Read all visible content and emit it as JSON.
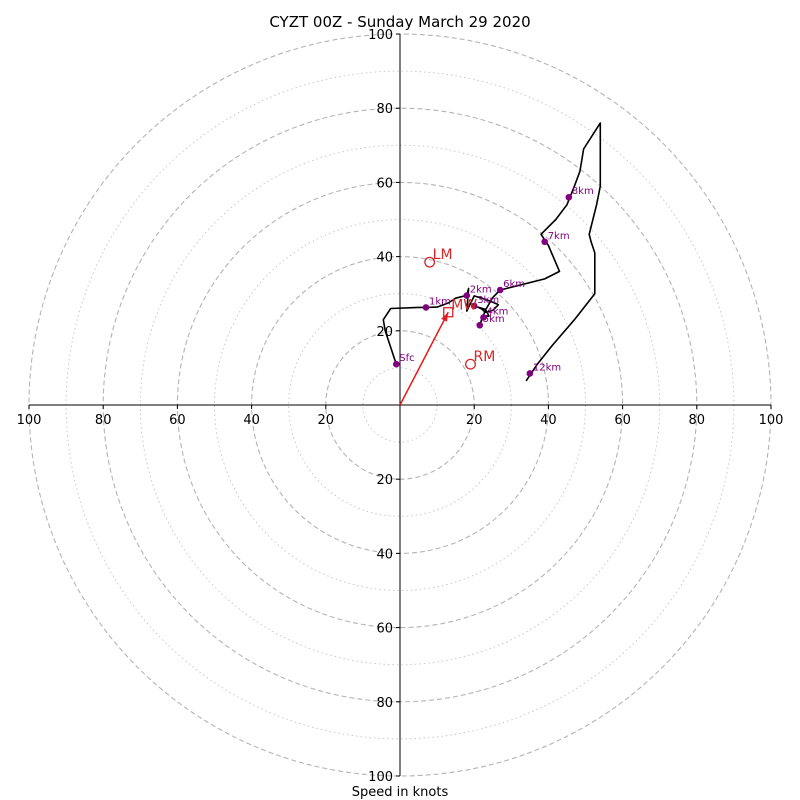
{
  "chart_data": {
    "type": "hodograph",
    "title": "CYZT 00Z - Sunday March 29 2020",
    "xlabel": "Speed in knots",
    "ylabel": "",
    "xlim": [
      -100,
      100
    ],
    "ylim": [
      -100,
      100
    ],
    "grid": {
      "major_rings": [
        20,
        40,
        60,
        80,
        100
      ],
      "minor_rings": [
        10,
        30,
        50,
        70,
        90
      ],
      "major_style": "dashed",
      "minor_style": "dotted"
    },
    "ticks": {
      "x_positions": [
        -100,
        -80,
        -60,
        -40,
        -20,
        20,
        40,
        60,
        80,
        100
      ],
      "x_labels": [
        "100",
        "80",
        "60",
        "40",
        "20",
        "20",
        "40",
        "60",
        "80",
        "100"
      ],
      "y_positions": [
        100,
        80,
        60,
        40,
        20,
        -20,
        -40,
        -60,
        -80,
        -100
      ],
      "y_labels": [
        "100",
        "80",
        "60",
        "40",
        "20",
        "20",
        "40",
        "60",
        "80",
        "100"
      ]
    },
    "trace_color": "#000000",
    "trace": [
      [
        -1,
        11
      ],
      [
        -4,
        20
      ],
      [
        -4.5,
        23
      ],
      [
        -2.5,
        26
      ],
      [
        5,
        26.3
      ],
      [
        7,
        26.3
      ],
      [
        10,
        26.4
      ],
      [
        13,
        27.5
      ],
      [
        15,
        28.8
      ],
      [
        17,
        29.3
      ],
      [
        18,
        29.5
      ],
      [
        18.5,
        31.4
      ],
      [
        18,
        25.3
      ],
      [
        20,
        29.4
      ],
      [
        23,
        28.5
      ],
      [
        26,
        27.3
      ],
      [
        26.5,
        27
      ],
      [
        25,
        25.5
      ],
      [
        23,
        25
      ],
      [
        22,
        25.9
      ],
      [
        21,
        26.4
      ],
      [
        23,
        25.8
      ],
      [
        24,
        24
      ],
      [
        22.5,
        23.6
      ],
      [
        22,
        23
      ],
      [
        21.5,
        21.5
      ],
      [
        23,
        25.5
      ],
      [
        25,
        29
      ],
      [
        27,
        31
      ],
      [
        31,
        32
      ],
      [
        39,
        34
      ],
      [
        43,
        36
      ],
      [
        40,
        43
      ],
      [
        38,
        46
      ],
      [
        42,
        50
      ],
      [
        45,
        54
      ],
      [
        47,
        59
      ],
      [
        48.5,
        63
      ],
      [
        49,
        66
      ],
      [
        49.5,
        69
      ],
      [
        54,
        76
      ],
      [
        54,
        59
      ],
      [
        53,
        54
      ],
      [
        52,
        50
      ],
      [
        51,
        46
      ],
      [
        51.5,
        44
      ],
      [
        52.5,
        41
      ],
      [
        52.5,
        30
      ],
      [
        47,
        23
      ],
      [
        41,
        16
      ],
      [
        37,
        11
      ],
      [
        34,
        6.5
      ]
    ],
    "height_points": [
      {
        "label": "Sfc",
        "u": -1,
        "v": 11
      },
      {
        "label": "1km",
        "u": 7,
        "v": 26.3
      },
      {
        "label": "2km",
        "u": 18,
        "v": 29.5
      },
      {
        "label": "3km",
        "u": 20,
        "v": 26.7
      },
      {
        "label": "4km",
        "u": 22.5,
        "v": 23.6
      },
      {
        "label": "5km",
        "u": 21.5,
        "v": 21.5
      },
      {
        "label": "6km",
        "u": 27,
        "v": 31
      },
      {
        "label": "7km",
        "u": 39,
        "v": 44
      },
      {
        "label": "8km",
        "u": 45.5,
        "v": 56
      },
      {
        "label": "12km",
        "u": 35,
        "v": 8.5
      }
    ],
    "height_point_color": "#800080",
    "motions": {
      "LM": {
        "label": "LM",
        "u": 8,
        "v": 38.5
      },
      "RM": {
        "label": "RM",
        "u": 19,
        "v": 11
      },
      "MW": {
        "label": "MW",
        "u": 13,
        "v": 25
      }
    },
    "motion_color": "#d62728",
    "arrow": {
      "u": 13,
      "v": 25,
      "color": "#e41a1c"
    }
  }
}
